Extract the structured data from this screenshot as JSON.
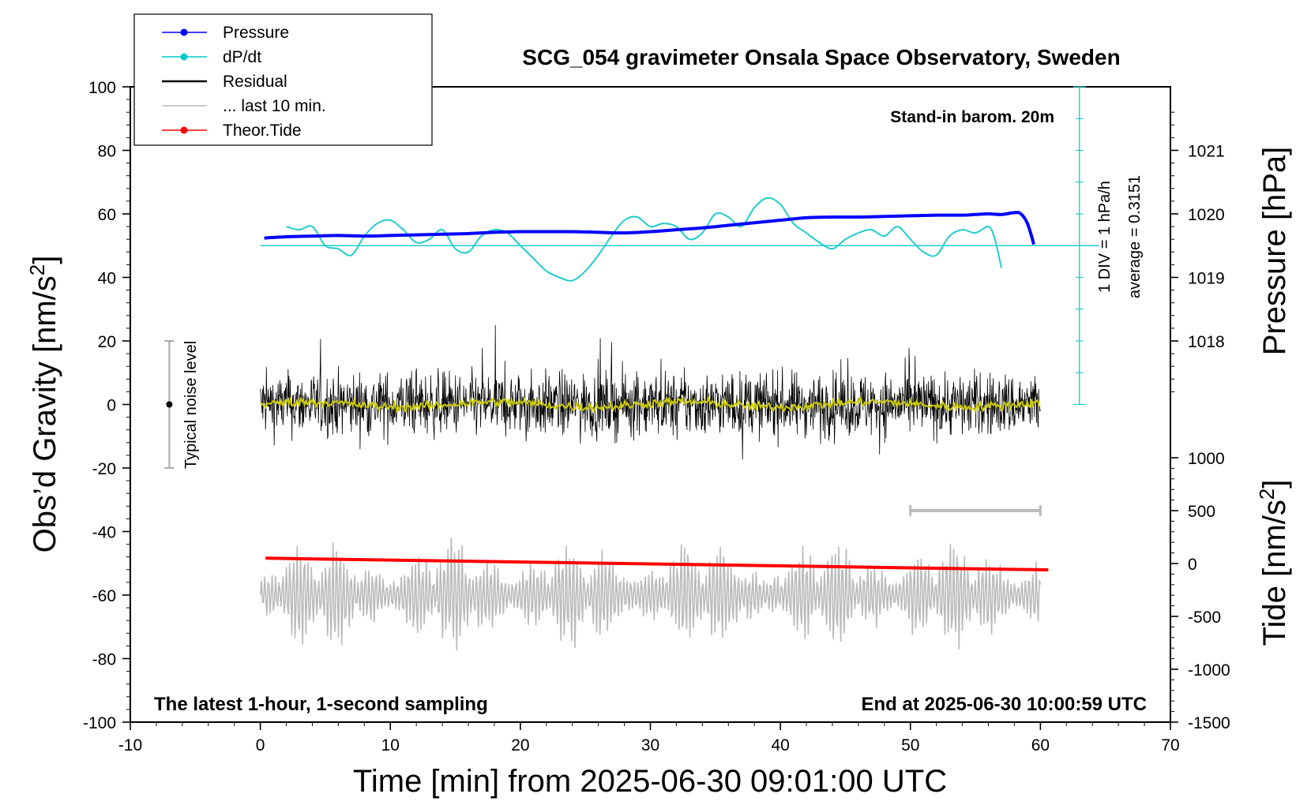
{
  "chart_data": {
    "type": "line",
    "title": "SCG_054 gravimeter Onsala Space Observatory, Sweden",
    "xlabel": "Time [min] from 2025-06-30 09:01:00 UTC",
    "ylabel_left": "Obs’d Gravity [nm/s",
    "ylabel_left_sup": "2",
    "ylabel_left_close": "]",
    "ylabel_right_top": "Pressure [hPa]",
    "ylabel_right_bottom": "Tide [nm/s",
    "ylabel_right_bottom_sup": "2",
    "ylabel_right_bottom_close": "]",
    "xlim": [
      -10,
      70
    ],
    "ylim": [
      -100,
      100
    ],
    "x_ticks": [
      "-10",
      "0",
      "10",
      "20",
      "30",
      "40",
      "50",
      "60",
      "70"
    ],
    "y_ticks": [
      "-100",
      "-80",
      "-60",
      "-40",
      "-20",
      "0",
      "20",
      "40",
      "60",
      "80",
      "100"
    ],
    "pressure_ticks": [
      "1018",
      "1019",
      "1020",
      "1021"
    ],
    "tide_ticks": [
      "-1500",
      "-1000",
      "-500",
      "0",
      "500",
      "1000"
    ],
    "grid": false,
    "legend_position": "top-left",
    "legend": [
      {
        "name": "Pressure",
        "color": "#0000ff",
        "marker": true
      },
      {
        "name": "dP/dt",
        "color": "#00cccc",
        "marker": true
      },
      {
        "name": "Residual",
        "color": "#000000",
        "marker": false
      },
      {
        "name": "... last 10 min.",
        "color": "#bbbbbb",
        "marker": false
      },
      {
        "name": "Theor.Tide",
        "color": "#ff0000",
        "marker": true
      }
    ],
    "annotations": {
      "barometer": "Stand-in barom. 20m",
      "div_note": "1 DIV = 1 hPa/h",
      "average_note": "average = 0.3151",
      "noise_label": "Typical noise level",
      "bottom_left": "The latest 1-hour, 1-second sampling",
      "bottom_right": "End at 2025-06-30 10:00:59 UTC"
    },
    "noise_bar": {
      "x": -7,
      "center": 0,
      "range": [
        -20,
        20
      ]
    },
    "ten_min_bar": {
      "x_range": [
        50,
        60
      ],
      "tide": 500
    },
    "series": [
      {
        "name": "Pressure",
        "axis": "pressure_hPa",
        "color": "#0000ff",
        "x": [
          0.3,
          2,
          4,
          6,
          8,
          10,
          12,
          14,
          16,
          18,
          20,
          22,
          24,
          26,
          28,
          30,
          32,
          34,
          36,
          38,
          40,
          42,
          44,
          46,
          48,
          50,
          52,
          54,
          55,
          56,
          57,
          58,
          58.5,
          59,
          59.5
        ],
        "values": [
          1019.62,
          1019.64,
          1019.65,
          1019.66,
          1019.65,
          1019.66,
          1019.67,
          1019.68,
          1019.69,
          1019.71,
          1019.72,
          1019.72,
          1019.72,
          1019.71,
          1019.7,
          1019.72,
          1019.75,
          1019.78,
          1019.82,
          1019.86,
          1019.9,
          1019.94,
          1019.95,
          1019.95,
          1019.96,
          1019.97,
          1019.98,
          1019.98,
          1019.99,
          1020.0,
          1019.99,
          1020.02,
          1020.0,
          1019.85,
          1019.52
        ]
      },
      {
        "name": "dP/dt",
        "axis": "gravity",
        "color": "#22cccc",
        "baseline": 50,
        "x": [
          2,
          3,
          4,
          5,
          6,
          7,
          8,
          9,
          10,
          11,
          12,
          13,
          14,
          15,
          16,
          17,
          18,
          19,
          20,
          21,
          22,
          23,
          24,
          25,
          26,
          27,
          28,
          29,
          30,
          31,
          32,
          33,
          34,
          35,
          36,
          37,
          38,
          39,
          40,
          41,
          42,
          43,
          44,
          45,
          46,
          47,
          48,
          49,
          50,
          51,
          52,
          53,
          54,
          55,
          56,
          56.5,
          57
        ],
        "values": [
          56,
          55,
          56,
          50,
          49,
          47,
          53,
          57,
          58,
          55,
          51,
          52,
          55,
          49,
          48,
          53,
          55,
          54,
          50,
          46,
          42,
          40,
          39,
          42,
          47,
          53,
          58,
          59,
          56,
          57,
          56,
          52,
          54,
          60,
          59,
          56,
          62,
          65,
          63,
          57,
          54,
          51,
          49,
          52,
          54,
          55,
          53,
          56,
          52,
          48,
          47,
          53,
          55,
          54,
          56,
          52,
          43
        ]
      },
      {
        "name": "Residual",
        "axis": "gravity",
        "color": "#000000",
        "x_range": [
          0,
          60
        ],
        "amplitude": 9,
        "envelope_range": [
          -21,
          25
        ]
      },
      {
        "name": "running mean",
        "axis": "gravity",
        "color": "#cccc00",
        "x_range": [
          0,
          60
        ],
        "level": 0
      },
      {
        "name": "... last 10 min.",
        "axis": "gravity",
        "color": "#bbbbbb",
        "x_range": [
          0,
          60
        ],
        "center": -60,
        "range": [
          -81,
          -40
        ]
      },
      {
        "name": "Theor.Tide",
        "axis": "tide_nm_s2",
        "color": "#ff0000",
        "x": [
          0.5,
          60.5
        ],
        "values": [
          50,
          -60
        ]
      }
    ],
    "axis_ranges": {
      "pressure_hPa": [
        1017,
        1021.8
      ],
      "tide_nm_s2": [
        -1500,
        1500
      ]
    }
  }
}
